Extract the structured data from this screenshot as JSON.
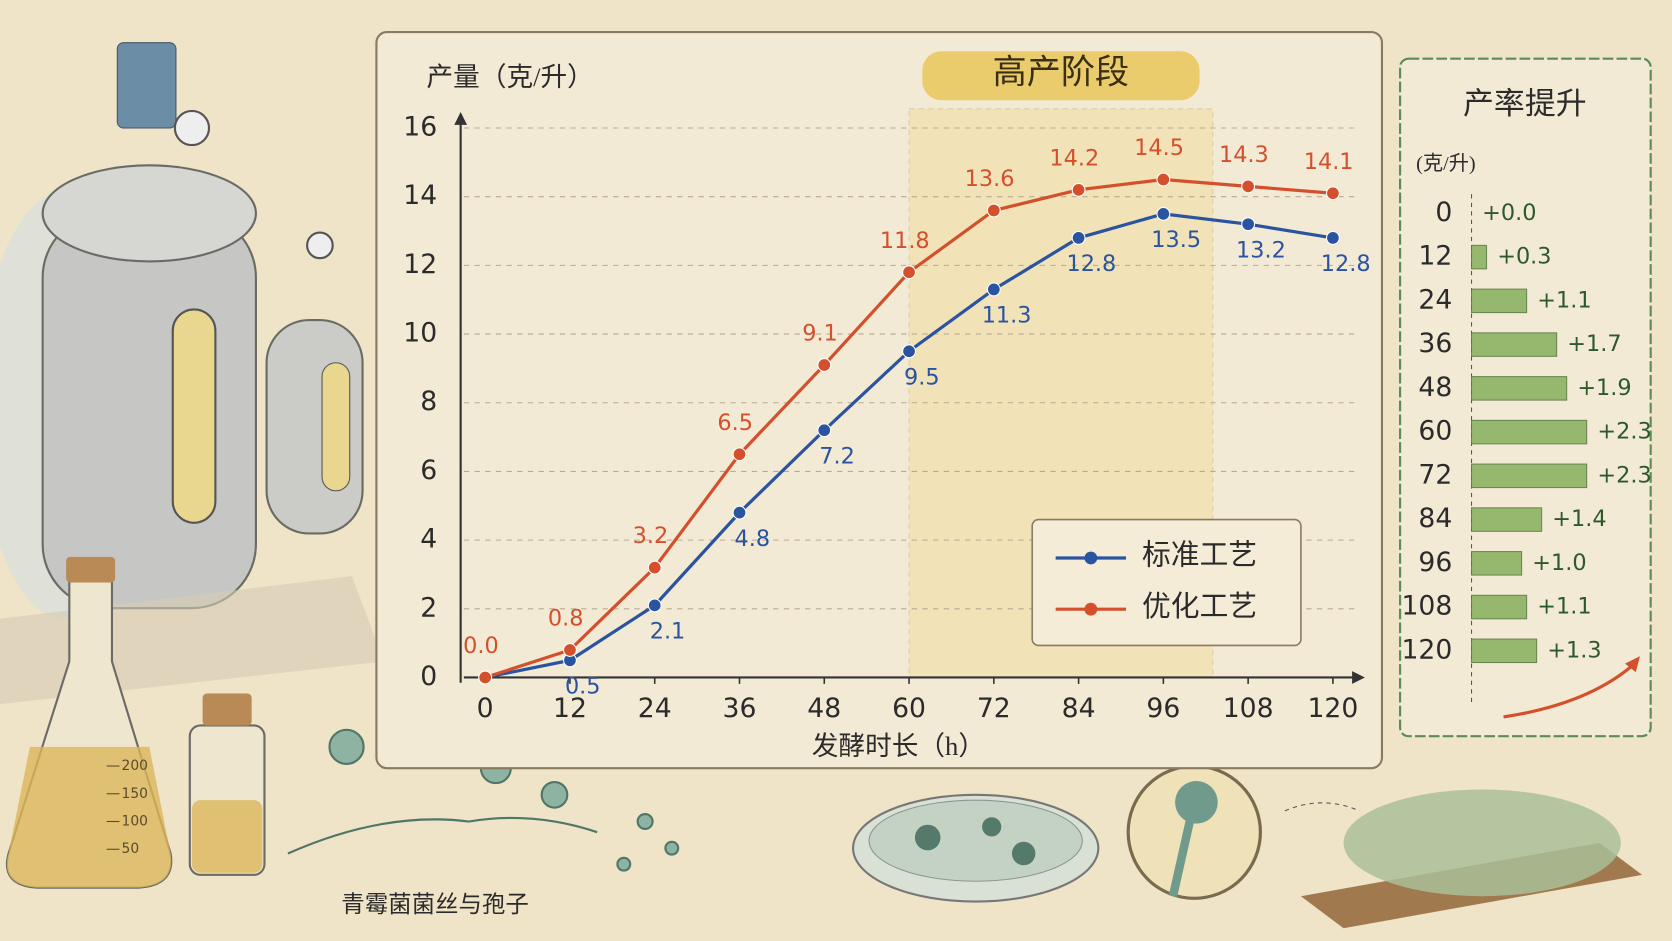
{
  "chart_data": [
    {
      "type": "line",
      "y_label": "产量（克/升）",
      "x_label": "发酵时长（h）",
      "x": [
        0,
        12,
        24,
        36,
        48,
        60,
        72,
        84,
        96,
        108,
        120
      ],
      "xlim": [
        0,
        120
      ],
      "xticks": [
        0,
        12,
        24,
        36,
        48,
        60,
        72,
        84,
        96,
        108,
        120
      ],
      "ylim": [
        0,
        16
      ],
      "yticks": [
        0,
        2,
        4,
        6,
        8,
        10,
        12,
        14,
        16
      ],
      "grid": true,
      "legend": "lower right",
      "highlight": {
        "label": "高产阶段",
        "x": [
          60,
          103
        ]
      },
      "series": [
        {
          "name": "标准工艺",
          "color": "#2a53a0",
          "values": [
            0,
            0.5,
            2.1,
            4.8,
            7.2,
            9.5,
            11.3,
            12.8,
            13.5,
            13.2,
            12.8
          ],
          "value_labels": [
            null,
            "0.5",
            "2.1",
            "4.8",
            "7.2",
            "9.5",
            "11.3",
            "12.8",
            "13.5",
            "13.2",
            "12.8"
          ]
        },
        {
          "name": "优化工艺",
          "color": "#d4502c",
          "values": [
            0,
            0.8,
            3.2,
            6.5,
            9.1,
            11.8,
            13.6,
            14.2,
            14.5,
            14.3,
            14.1
          ],
          "value_labels": [
            "0.0",
            "0.8",
            "3.2",
            "6.5",
            "9.1",
            "11.8",
            "13.6",
            "14.2",
            "14.5",
            "14.3",
            "14.1"
          ]
        }
      ]
    },
    {
      "type": "hbar",
      "title": "产率提升",
      "unit": "(克/升)",
      "color": "#8db363",
      "categories": [
        "0",
        "12",
        "24",
        "36",
        "48",
        "60",
        "72",
        "84",
        "96",
        "108",
        "120"
      ],
      "values": [
        0.0,
        0.3,
        1.1,
        1.7,
        1.9,
        2.3,
        2.3,
        1.4,
        1.0,
        1.1,
        1.3
      ],
      "value_labels": [
        "+0.0",
        "+0.3",
        "+1.1",
        "+1.7",
        "+1.9",
        "+2.3",
        "+2.3",
        "+1.4",
        "+1.0",
        "+1.1",
        "+1.3"
      ]
    }
  ],
  "caption": "青霉菌菌丝与孢子",
  "flask_marks": [
    "200",
    "150",
    "100",
    "50"
  ]
}
